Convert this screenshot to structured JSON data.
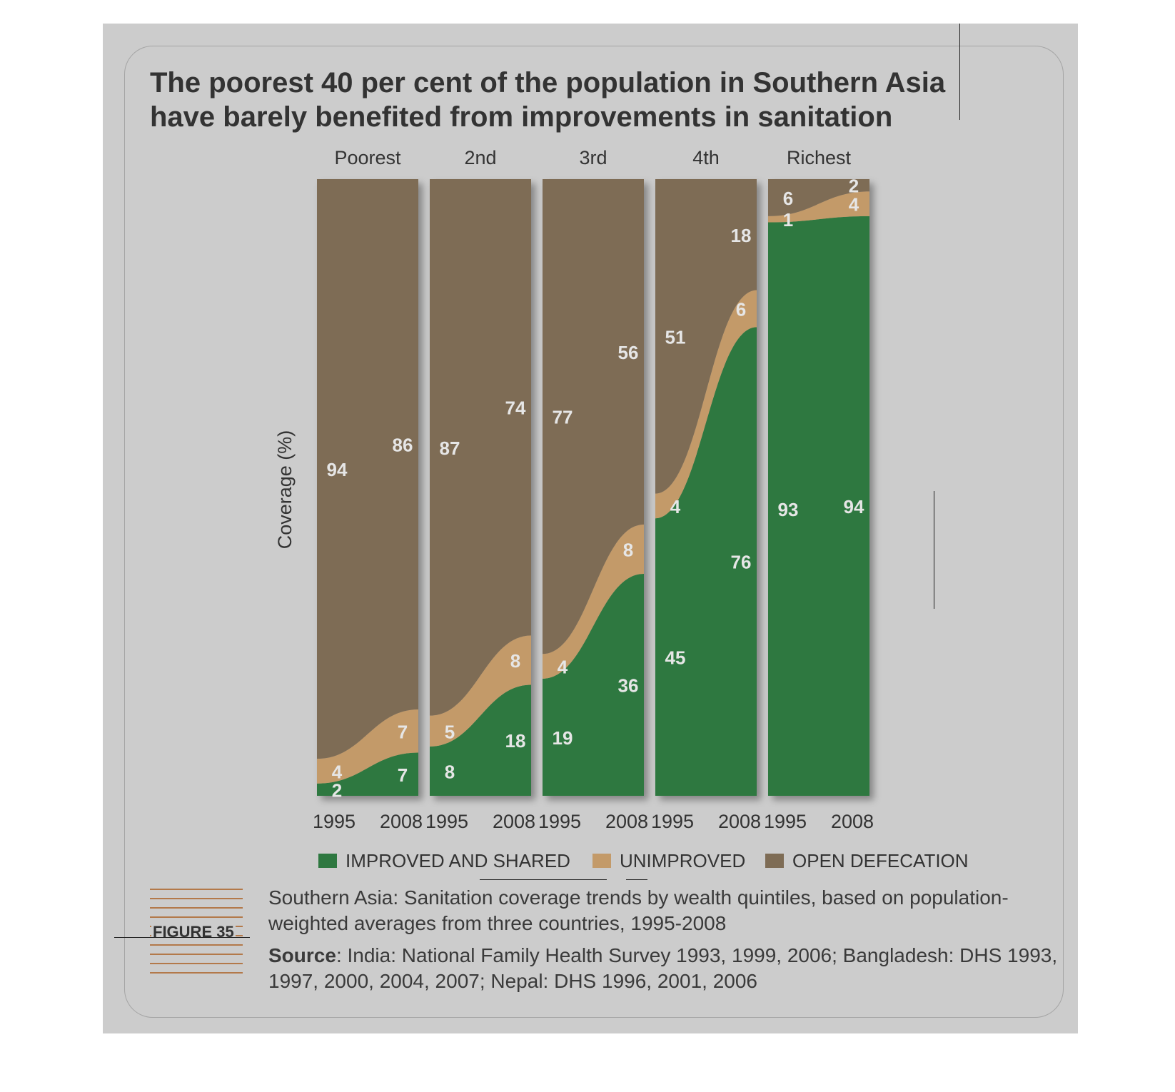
{
  "title_lines": [
    "The poorest 40 per cent of the population in Southern Asia",
    "have barely benefited from improvements in sanitation"
  ],
  "figure_label": "FIGURE 35",
  "caption": "Southern Asia: Sanitation coverage trends by wealth quintiles, based on population-weighted averages from three countries, 1995-2008",
  "source_label": "Source",
  "source_text": ": India: National Family Health Survey 1993, 1999, 2006; Bangladesh: DHS 1993, 1997, 2000, 2004, 2007; Nepal: DHS 1996, 2001, 2006",
  "colors": {
    "improved": "#2e7840",
    "unimproved": "#c39a69",
    "open_defecation": "#7e6c55",
    "panel_background": "#cccccc",
    "label_light": "#e6e6e6",
    "text_dark": "#333333"
  },
  "chart_data": {
    "type": "area",
    "subtype": "stacked-percent-panels",
    "ylabel": "Coverage (%)",
    "ylim": [
      0,
      100
    ],
    "grid": false,
    "legend_position": "bottom",
    "legend": [
      "IMPROVED AND SHARED",
      "UNIMPROVED",
      "OPEN DEFECATION"
    ],
    "x": [
      "1995",
      "2008"
    ],
    "panels": [
      {
        "name": "Poorest",
        "series": [
          {
            "name": "IMPROVED AND SHARED",
            "values": [
              2,
              7
            ]
          },
          {
            "name": "UNIMPROVED",
            "values": [
              4,
              7
            ]
          },
          {
            "name": "OPEN DEFECATION",
            "values": [
              94,
              86
            ]
          }
        ]
      },
      {
        "name": "2nd",
        "series": [
          {
            "name": "IMPROVED AND SHARED",
            "values": [
              8,
              18
            ]
          },
          {
            "name": "UNIMPROVED",
            "values": [
              5,
              8
            ]
          },
          {
            "name": "OPEN DEFECATION",
            "values": [
              87,
              74
            ]
          }
        ]
      },
      {
        "name": "3rd",
        "series": [
          {
            "name": "IMPROVED AND SHARED",
            "values": [
              19,
              36
            ]
          },
          {
            "name": "UNIMPROVED",
            "values": [
              4,
              8
            ]
          },
          {
            "name": "OPEN DEFECATION",
            "values": [
              77,
              56
            ]
          }
        ]
      },
      {
        "name": "4th",
        "series": [
          {
            "name": "IMPROVED AND SHARED",
            "values": [
              45,
              76
            ]
          },
          {
            "name": "UNIMPROVED",
            "values": [
              4,
              6
            ]
          },
          {
            "name": "OPEN DEFECATION",
            "values": [
              51,
              18
            ]
          }
        ]
      },
      {
        "name": "Richest",
        "series": [
          {
            "name": "IMPROVED AND SHARED",
            "values": [
              93,
              94
            ]
          },
          {
            "name": "UNIMPROVED",
            "values": [
              1,
              4
            ]
          },
          {
            "name": "OPEN DEFECATION",
            "values": [
              6,
              2
            ]
          }
        ]
      }
    ]
  }
}
